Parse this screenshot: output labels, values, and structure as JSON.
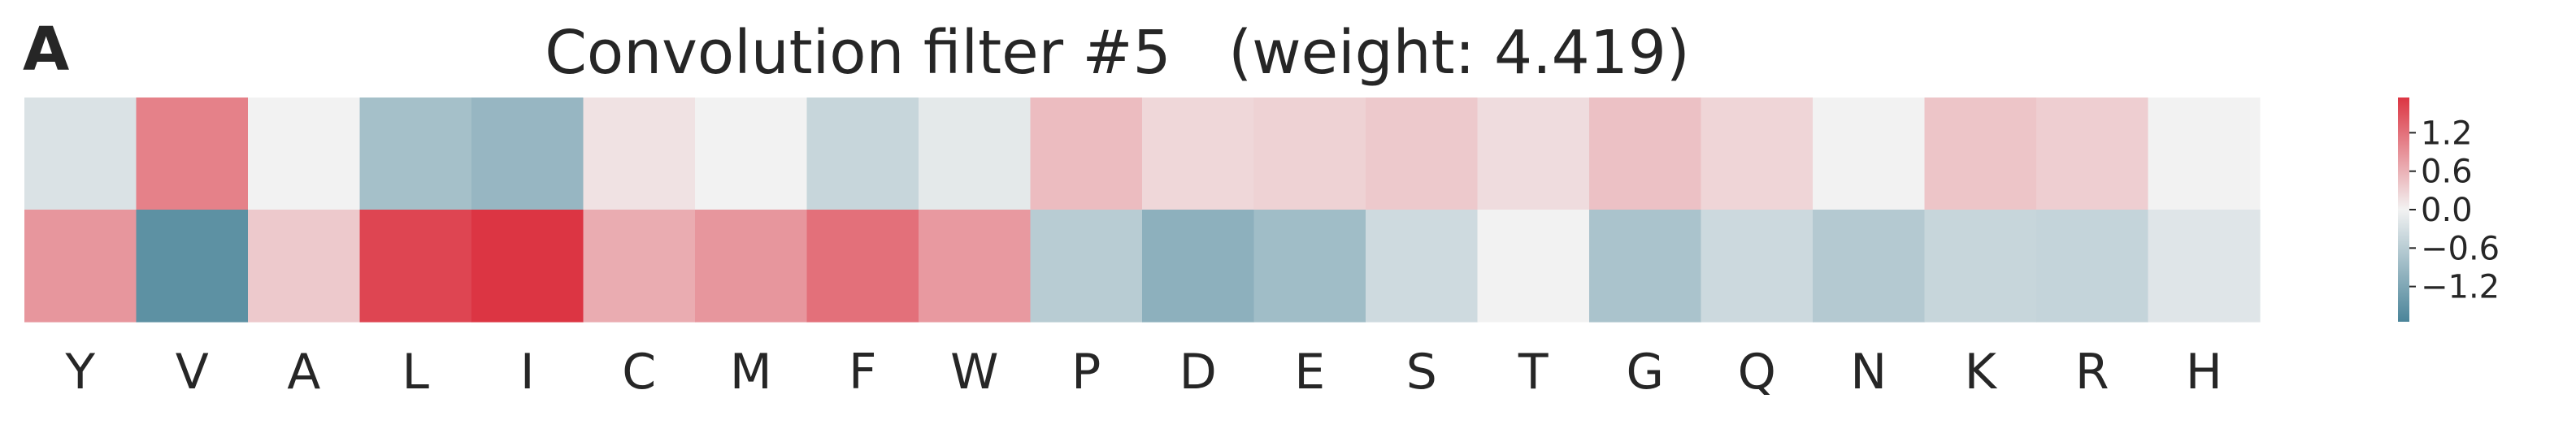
{
  "figure": {
    "panel_label": "A",
    "title": "Convolution filter #5   (weight: 4.419)"
  },
  "chart_data": {
    "type": "heatmap",
    "title": "Convolution filter #5   (weight: 4.419)",
    "xlabel": "",
    "ylabel": "",
    "categories": [
      "Y",
      "V",
      "A",
      "L",
      "I",
      "C",
      "M",
      "F",
      "W",
      "P",
      "D",
      "E",
      "S",
      "T",
      "G",
      "Q",
      "N",
      "K",
      "R",
      "H"
    ],
    "rows": [
      [
        -0.25,
        1.05,
        0.0,
        -0.8,
        -0.95,
        0.15,
        0.0,
        -0.45,
        -0.15,
        0.5,
        0.25,
        0.3,
        0.38,
        0.2,
        0.45,
        0.27,
        0.0,
        0.42,
        0.33,
        0.0
      ],
      [
        0.85,
        -1.55,
        0.38,
        1.6,
        1.75,
        0.65,
        0.85,
        1.2,
        0.82,
        -0.6,
        -1.05,
        -0.85,
        -0.38,
        0.0,
        -0.75,
        -0.4,
        -0.65,
        -0.45,
        -0.48,
        -0.2
      ]
    ],
    "colorbar": {
      "ticks": [
        1.2,
        0.6,
        0.0,
        -0.6,
        -1.2
      ],
      "tick_labels": [
        "1.2",
        "0.6",
        "0.0",
        "−0.6",
        "−1.2"
      ],
      "vmin": -1.75,
      "vmax": 1.75
    },
    "colors": {
      "negative": "#4a8499",
      "neutral": "#f2f2f2",
      "positive": "#dc3543"
    },
    "grid": false
  }
}
